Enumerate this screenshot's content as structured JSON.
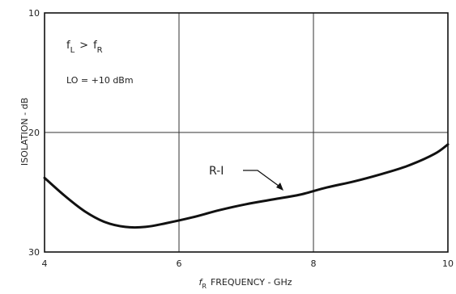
{
  "chart_data": {
    "type": "line",
    "xlabel": "FREQUENCY - GHz",
    "xlabel_symbol": "f",
    "xlabel_symbol_sub": "R",
    "ylabel": "ISOLATION - dB",
    "xlim": [
      4,
      10
    ],
    "ylim": [
      10,
      30
    ],
    "y_inverted": true,
    "grid": true,
    "x_ticks": [
      4,
      6,
      8,
      10
    ],
    "y_ticks": [
      10,
      20,
      30
    ],
    "x_tick_labels": [
      "4",
      "6",
      "8",
      "10"
    ],
    "y_tick_labels": [
      "10",
      "20",
      "30"
    ],
    "annotations": {
      "condition_symbol_1": "f",
      "condition_sub_1": "L",
      "condition_operator": ">",
      "condition_symbol_2": "f",
      "condition_sub_2": "R",
      "lo_level": "LO  =  +10 dBm"
    },
    "series": [
      {
        "name": "R-I",
        "x": [
          4.0,
          4.3,
          4.6,
          4.9,
          5.2,
          5.5,
          5.8,
          6.2,
          6.6,
          7.0,
          7.4,
          7.8,
          8.2,
          8.6,
          9.0,
          9.4,
          9.8,
          10.0
        ],
        "y": [
          23.8,
          25.3,
          26.6,
          27.5,
          27.9,
          27.9,
          27.6,
          27.1,
          26.5,
          26.0,
          25.6,
          25.2,
          24.6,
          24.1,
          23.5,
          22.8,
          21.8,
          21.0
        ]
      }
    ]
  }
}
